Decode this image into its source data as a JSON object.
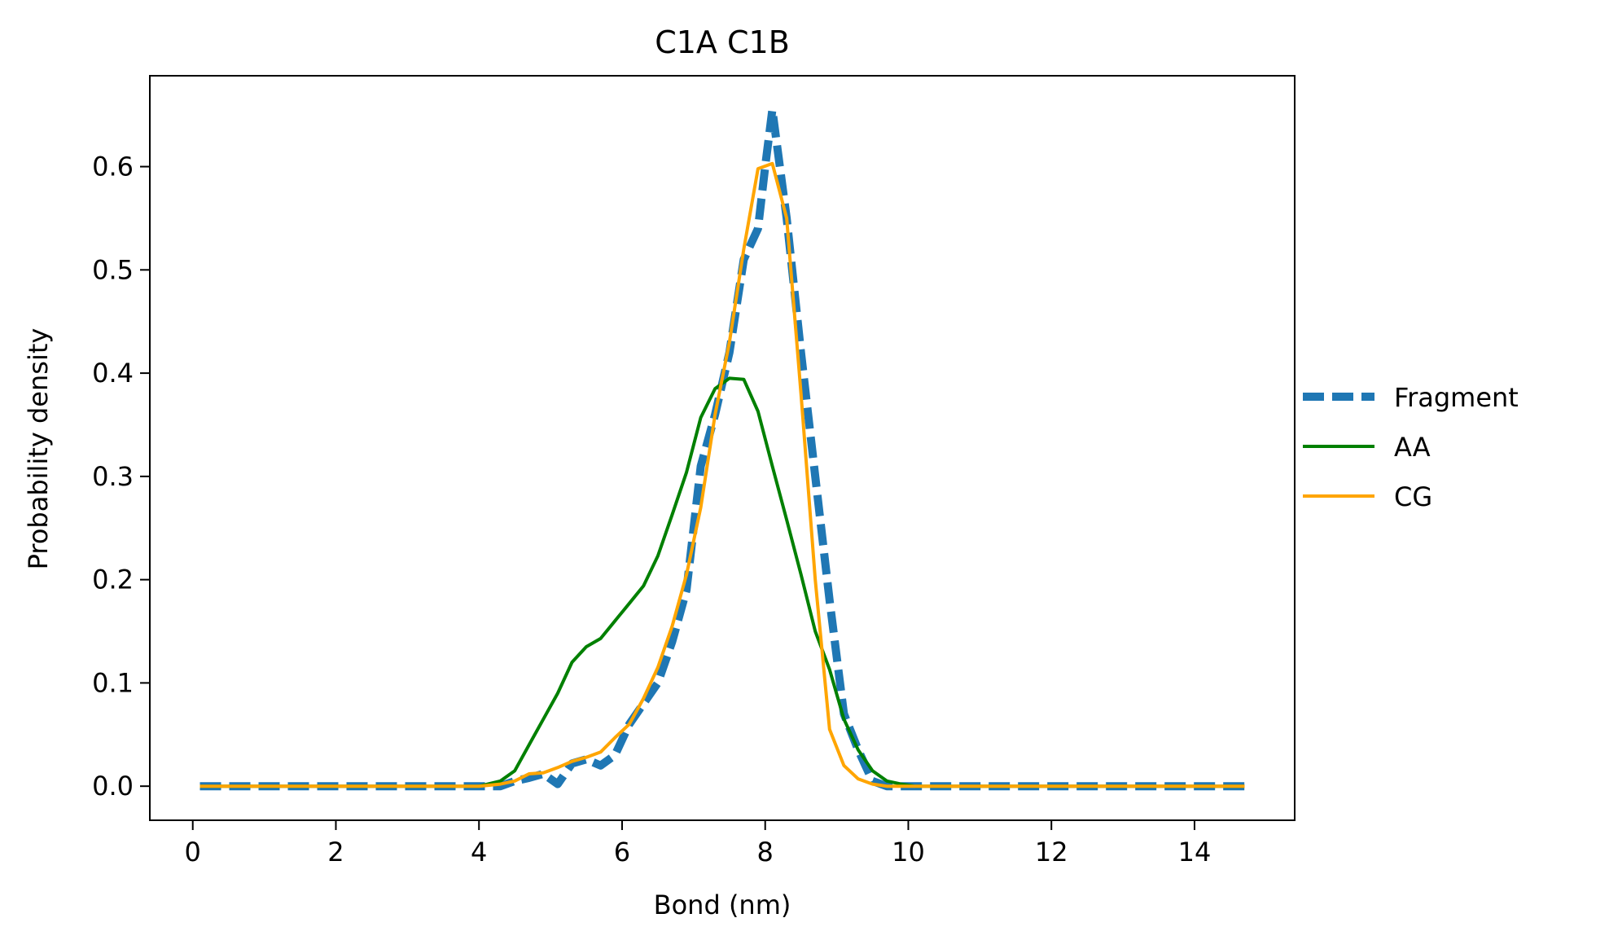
{
  "chart_data": {
    "type": "line",
    "title": "C1A C1B",
    "xlabel": "Bond (nm)",
    "ylabel": "Probability density",
    "xlim": [
      -0.6,
      15.4
    ],
    "ylim": [
      -0.033,
      0.688
    ],
    "xticks": [
      0,
      2,
      4,
      6,
      8,
      10,
      12,
      14
    ],
    "xtick_labels": [
      "0",
      "2",
      "4",
      "6",
      "8",
      "10",
      "12",
      "14"
    ],
    "yticks": [
      0.0,
      0.1,
      0.2,
      0.3,
      0.4,
      0.5,
      0.6
    ],
    "ytick_labels": [
      "0.0",
      "0.1",
      "0.2",
      "0.3",
      "0.4",
      "0.5",
      "0.6"
    ],
    "grid": false,
    "legend_position": "center-right outside",
    "series": [
      {
        "name": "Fragment",
        "color": "#1f77b4",
        "style": "dashed",
        "x": [
          0.1,
          4.3,
          4.5,
          4.7,
          4.9,
          5.1,
          5.3,
          5.5,
          5.7,
          5.9,
          6.1,
          6.3,
          6.5,
          6.7,
          6.9,
          7.1,
          7.3,
          7.5,
          7.7,
          7.9,
          8.0,
          8.1,
          8.3,
          8.5,
          8.7,
          8.9,
          9.1,
          9.3,
          9.5,
          9.7,
          9.9,
          14.7
        ],
        "y": [
          0.0,
          0.0,
          0.005,
          0.008,
          0.012,
          0.002,
          0.022,
          0.026,
          0.02,
          0.03,
          0.06,
          0.08,
          0.1,
          0.14,
          0.19,
          0.31,
          0.36,
          0.42,
          0.51,
          0.54,
          0.6,
          0.655,
          0.55,
          0.42,
          0.3,
          0.18,
          0.07,
          0.035,
          0.005,
          0.0,
          0.0,
          0.0
        ]
      },
      {
        "name": "AA",
        "color": "#008000",
        "style": "solid",
        "x": [
          0.1,
          4.0,
          4.3,
          4.5,
          4.7,
          4.9,
          5.1,
          5.3,
          5.5,
          5.7,
          5.9,
          6.1,
          6.3,
          6.5,
          6.7,
          6.9,
          7.1,
          7.3,
          7.5,
          7.7,
          7.9,
          8.1,
          8.3,
          8.5,
          8.7,
          8.9,
          9.1,
          9.3,
          9.5,
          9.7,
          9.9,
          10.1,
          14.7
        ],
        "y": [
          0.0,
          0.0,
          0.005,
          0.015,
          0.04,
          0.065,
          0.09,
          0.12,
          0.135,
          0.143,
          0.16,
          0.177,
          0.194,
          0.223,
          0.263,
          0.304,
          0.357,
          0.385,
          0.395,
          0.394,
          0.363,
          0.31,
          0.258,
          0.205,
          0.15,
          0.113,
          0.065,
          0.035,
          0.015,
          0.005,
          0.002,
          0.0,
          0.0
        ]
      },
      {
        "name": "CG",
        "color": "#ffa500",
        "style": "solid",
        "x": [
          0.1,
          4.0,
          4.3,
          4.5,
          4.7,
          4.9,
          5.1,
          5.3,
          5.5,
          5.7,
          5.9,
          6.1,
          6.3,
          6.5,
          6.7,
          6.9,
          7.1,
          7.3,
          7.5,
          7.7,
          7.9,
          8.1,
          8.3,
          8.5,
          8.7,
          8.9,
          9.1,
          9.3,
          9.5,
          9.7,
          9.9,
          14.7
        ],
        "y": [
          0.0,
          0.0,
          0.002,
          0.005,
          0.012,
          0.013,
          0.018,
          0.024,
          0.028,
          0.033,
          0.047,
          0.06,
          0.085,
          0.115,
          0.155,
          0.205,
          0.27,
          0.36,
          0.43,
          0.52,
          0.598,
          0.603,
          0.55,
          0.38,
          0.2,
          0.055,
          0.02,
          0.007,
          0.002,
          0.0,
          0.0,
          0.0
        ]
      }
    ]
  }
}
